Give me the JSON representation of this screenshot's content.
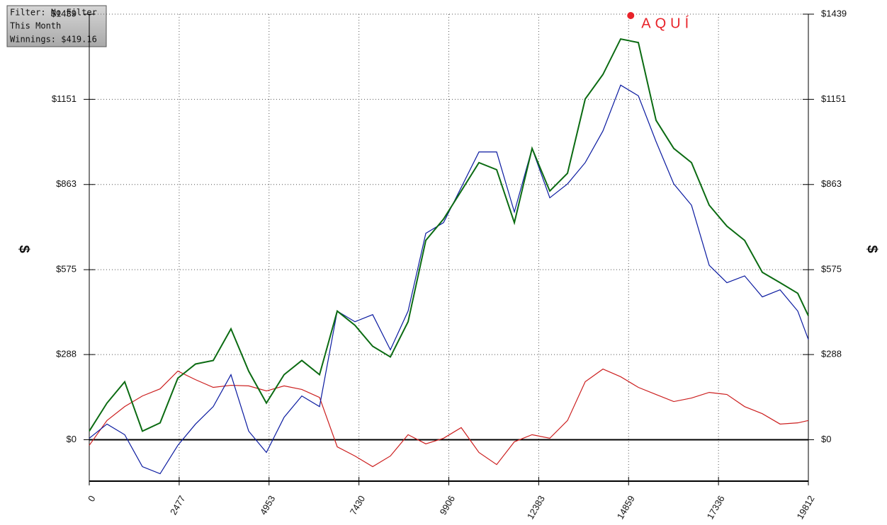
{
  "chart_data": {
    "type": "line",
    "y_label": "$",
    "info_box": [
      "Filter: No Filter",
      "This Month",
      "Winnings: $419.16"
    ],
    "annotations": [
      {
        "text": "AQUÍ",
        "x": 14859,
        "y": 1439,
        "color": "#e8232a"
      }
    ],
    "x": [
      0,
      488,
      976,
      1464,
      1952,
      2440,
      2928,
      3416,
      3904,
      4392,
      4880,
      5368,
      5856,
      6344,
      6832,
      7320,
      7808,
      8296,
      8784,
      9272,
      9760,
      10248,
      10736,
      11224,
      11712,
      12200,
      12688,
      13176,
      13664,
      14152,
      14640,
      15128,
      15616,
      16104,
      16592,
      17080,
      17568,
      18056,
      18544,
      19032,
      19520,
      19812
    ],
    "series": [
      {
        "color": "#0b6b12",
        "values": [
          29,
          124,
          196,
          29,
          57,
          208,
          256,
          268,
          375,
          232,
          124,
          220,
          268,
          220,
          435,
          387,
          316,
          280,
          399,
          674,
          746,
          841,
          937,
          913,
          734,
          985,
          841,
          901,
          1152,
          1235,
          1355,
          1343,
          1080,
          985,
          937,
          793,
          722,
          674,
          566,
          531,
          495,
          419
        ]
      },
      {
        "color": "#0a1aa0",
        "values": [
          5,
          53,
          17,
          -91,
          -115,
          -19,
          53,
          112,
          220,
          29,
          -43,
          76,
          148,
          112,
          435,
          399,
          423,
          304,
          435,
          698,
          734,
          853,
          973,
          973,
          770,
          985,
          818,
          865,
          937,
          1044,
          1199,
          1163,
          1008,
          865,
          793,
          590,
          531,
          554,
          483,
          507,
          435,
          339
        ]
      },
      {
        "color": "#cc1f1f",
        "values": [
          -19,
          65,
          112,
          148,
          172,
          232,
          203,
          177,
          184,
          182,
          165,
          182,
          170,
          143,
          -24,
          -55,
          -91,
          -55,
          17,
          -14,
          5,
          41,
          -43,
          -84,
          -7,
          17,
          5,
          65,
          196,
          239,
          213,
          177,
          153,
          129,
          141,
          160,
          153,
          112,
          88,
          53,
          57,
          65
        ]
      }
    ],
    "xlim": [
      0,
      19812
    ],
    "xticks": [
      0,
      2477,
      4953,
      7430,
      9906,
      12383,
      14859,
      17336,
      19812
    ],
    "ylim": [
      -140,
      1439
    ],
    "yticks": [
      {
        "value": 0,
        "label": "$0"
      },
      {
        "value": 288,
        "label": "$288"
      },
      {
        "value": 575,
        "label": "$575"
      },
      {
        "value": 863,
        "label": "$863"
      },
      {
        "value": 1151,
        "label": "$1151"
      },
      {
        "value": 1439,
        "label": "$1439"
      }
    ],
    "grid": true
  }
}
